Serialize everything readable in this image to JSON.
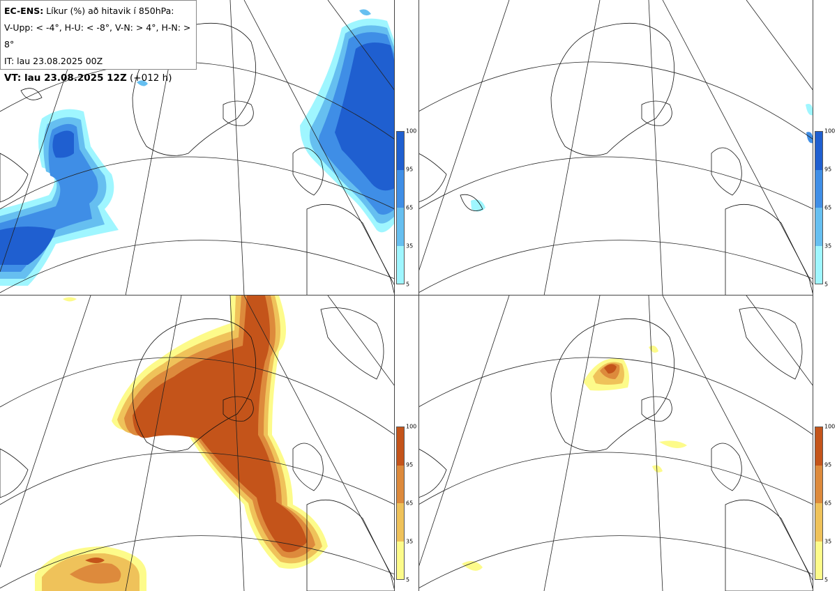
{
  "header": {
    "model": "EC-ENS:",
    "title": " Líkur (%) að hitavik í 850hPa:",
    "thresholds": "V-Upp: < -4°, H-U: < -8°, V-N: > 4°, H-N: > 8°",
    "init_label": "IT: lau 23.08.2025 00Z",
    "valid_bold": "VT: lau 23.08.2025 12Z",
    "valid_lead": " (+012 h)"
  },
  "colorbar_blue": {
    "ticks": [
      "100",
      "95",
      "65",
      "35",
      "5"
    ],
    "colors": [
      "#1f5fd0",
      "#3f8ee6",
      "#66bff0",
      "#9ff6ff"
    ]
  },
  "colorbar_orange": {
    "ticks": [
      "100",
      "95",
      "65",
      "35",
      "5"
    ],
    "colors": [
      "#c4541a",
      "#dd8a3c",
      "#efc25a",
      "#fdfb8a"
    ]
  },
  "panels": [
    {
      "id": "cold-4",
      "field": "blue"
    },
    {
      "id": "cold-8",
      "field": "blue"
    },
    {
      "id": "warm-4",
      "field": "orange"
    },
    {
      "id": "warm-8",
      "field": "orange"
    }
  ]
}
